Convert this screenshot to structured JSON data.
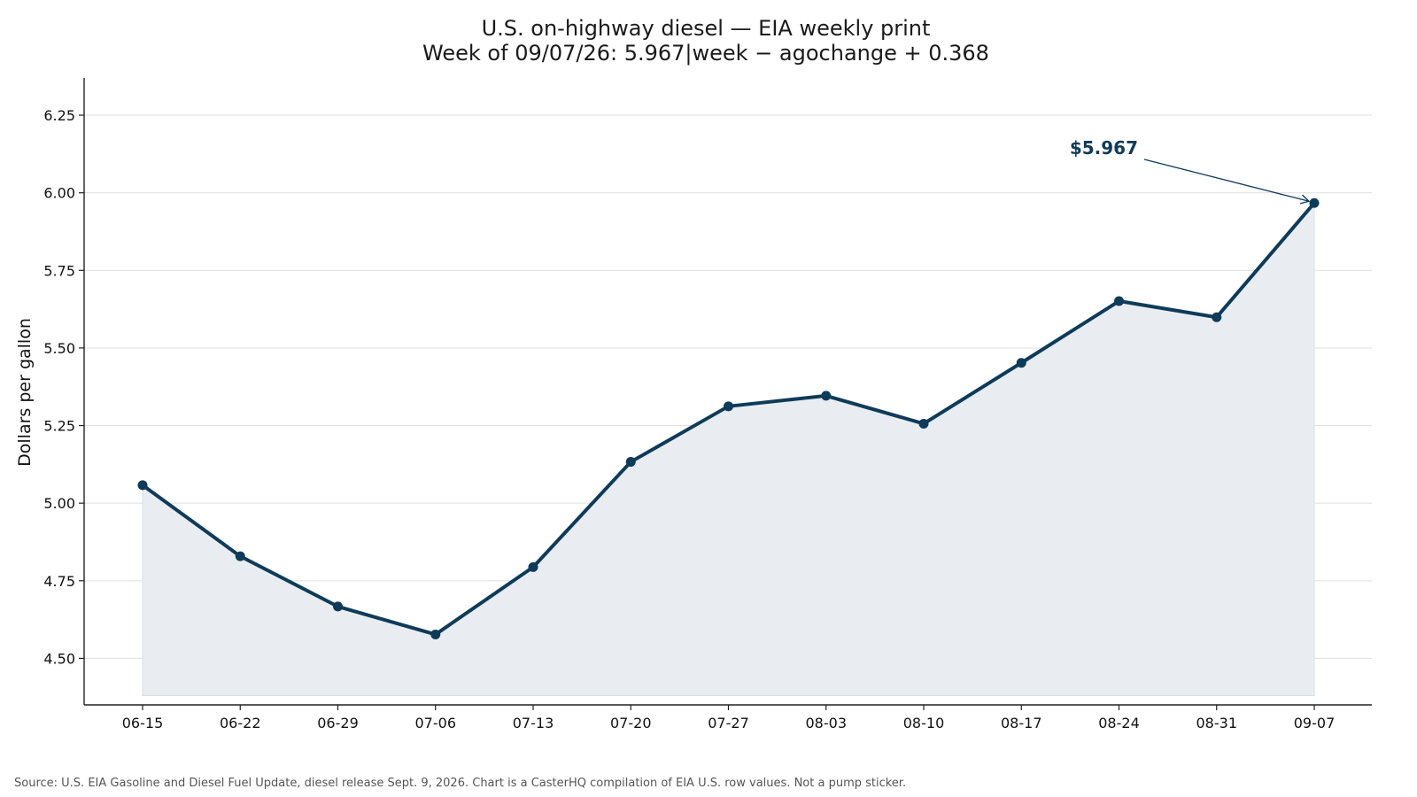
{
  "chart_data": {
    "type": "line",
    "title": "U.S. on-highway diesel — EIA weekly print",
    "subtitle": "Week of 09/07/26: 5.967|week − agochange + 0.368",
    "xlabel": "",
    "ylabel": "Dollars per gallon",
    "categories": [
      "06-15",
      "06-22",
      "06-29",
      "07-06",
      "07-13",
      "07-20",
      "07-27",
      "08-03",
      "08-10",
      "08-17",
      "08-24",
      "08-31",
      "09-07"
    ],
    "series": [
      {
        "values": [
          5.058,
          4.829,
          4.667,
          4.577,
          4.794,
          5.133,
          5.312,
          5.346,
          5.256,
          5.452,
          5.651,
          5.599,
          5.967
        ]
      }
    ],
    "ylim": [
      4.35,
      6.37
    ],
    "yticks": [
      4.5,
      4.75,
      5.0,
      5.25,
      5.5,
      5.75,
      6.0,
      6.25
    ],
    "ytick_labels": [
      "4.50",
      "4.75",
      "5.00",
      "5.25",
      "5.50",
      "5.75",
      "6.00",
      "6.25"
    ],
    "area_fill": true,
    "area_baseline": 4.38,
    "grid": "horizontal",
    "legend": "none",
    "annotation": {
      "text": "$5.967",
      "target_category": "09-07",
      "target_value": 5.967
    },
    "colors": {
      "line": "#0f3b5a",
      "fill": "#e9edf1",
      "grid": "#e3e3e3",
      "axis": "#222222"
    }
  },
  "footer": {
    "source": "Source: U.S. EIA Gasoline and Diesel Fuel Update, diesel release Sept. 9, 2026. Chart is a CasterHQ compilation of EIA U.S. row values. Not a pump sticker."
  }
}
